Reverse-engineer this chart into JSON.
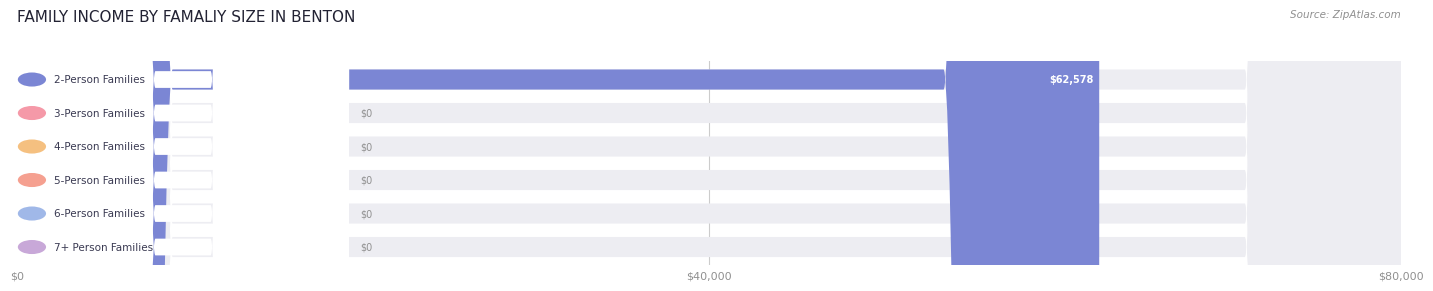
{
  "title": "FAMILY INCOME BY FAMALIY SIZE IN BENTON",
  "source": "Source: ZipAtlas.com",
  "categories": [
    "2-Person Families",
    "3-Person Families",
    "4-Person Families",
    "5-Person Families",
    "6-Person Families",
    "7+ Person Families"
  ],
  "values": [
    62578,
    0,
    0,
    0,
    0,
    0
  ],
  "max_value": 80000,
  "bar_colors": [
    "#7b86d4",
    "#f599a8",
    "#f5c080",
    "#f5a090",
    "#a0b8e8",
    "#c8a8d8"
  ],
  "tick_labels": [
    "$0",
    "$40,000",
    "$80,000"
  ],
  "tick_values": [
    0,
    40000,
    80000
  ],
  "value_labels": [
    "$62,578",
    "$0",
    "$0",
    "$0",
    "$0",
    "$0"
  ],
  "bg_color": "#ffffff",
  "bar_bg_color": "#ededf2",
  "title_fontsize": 11,
  "label_fontsize": 7.5,
  "value_fontsize": 7
}
